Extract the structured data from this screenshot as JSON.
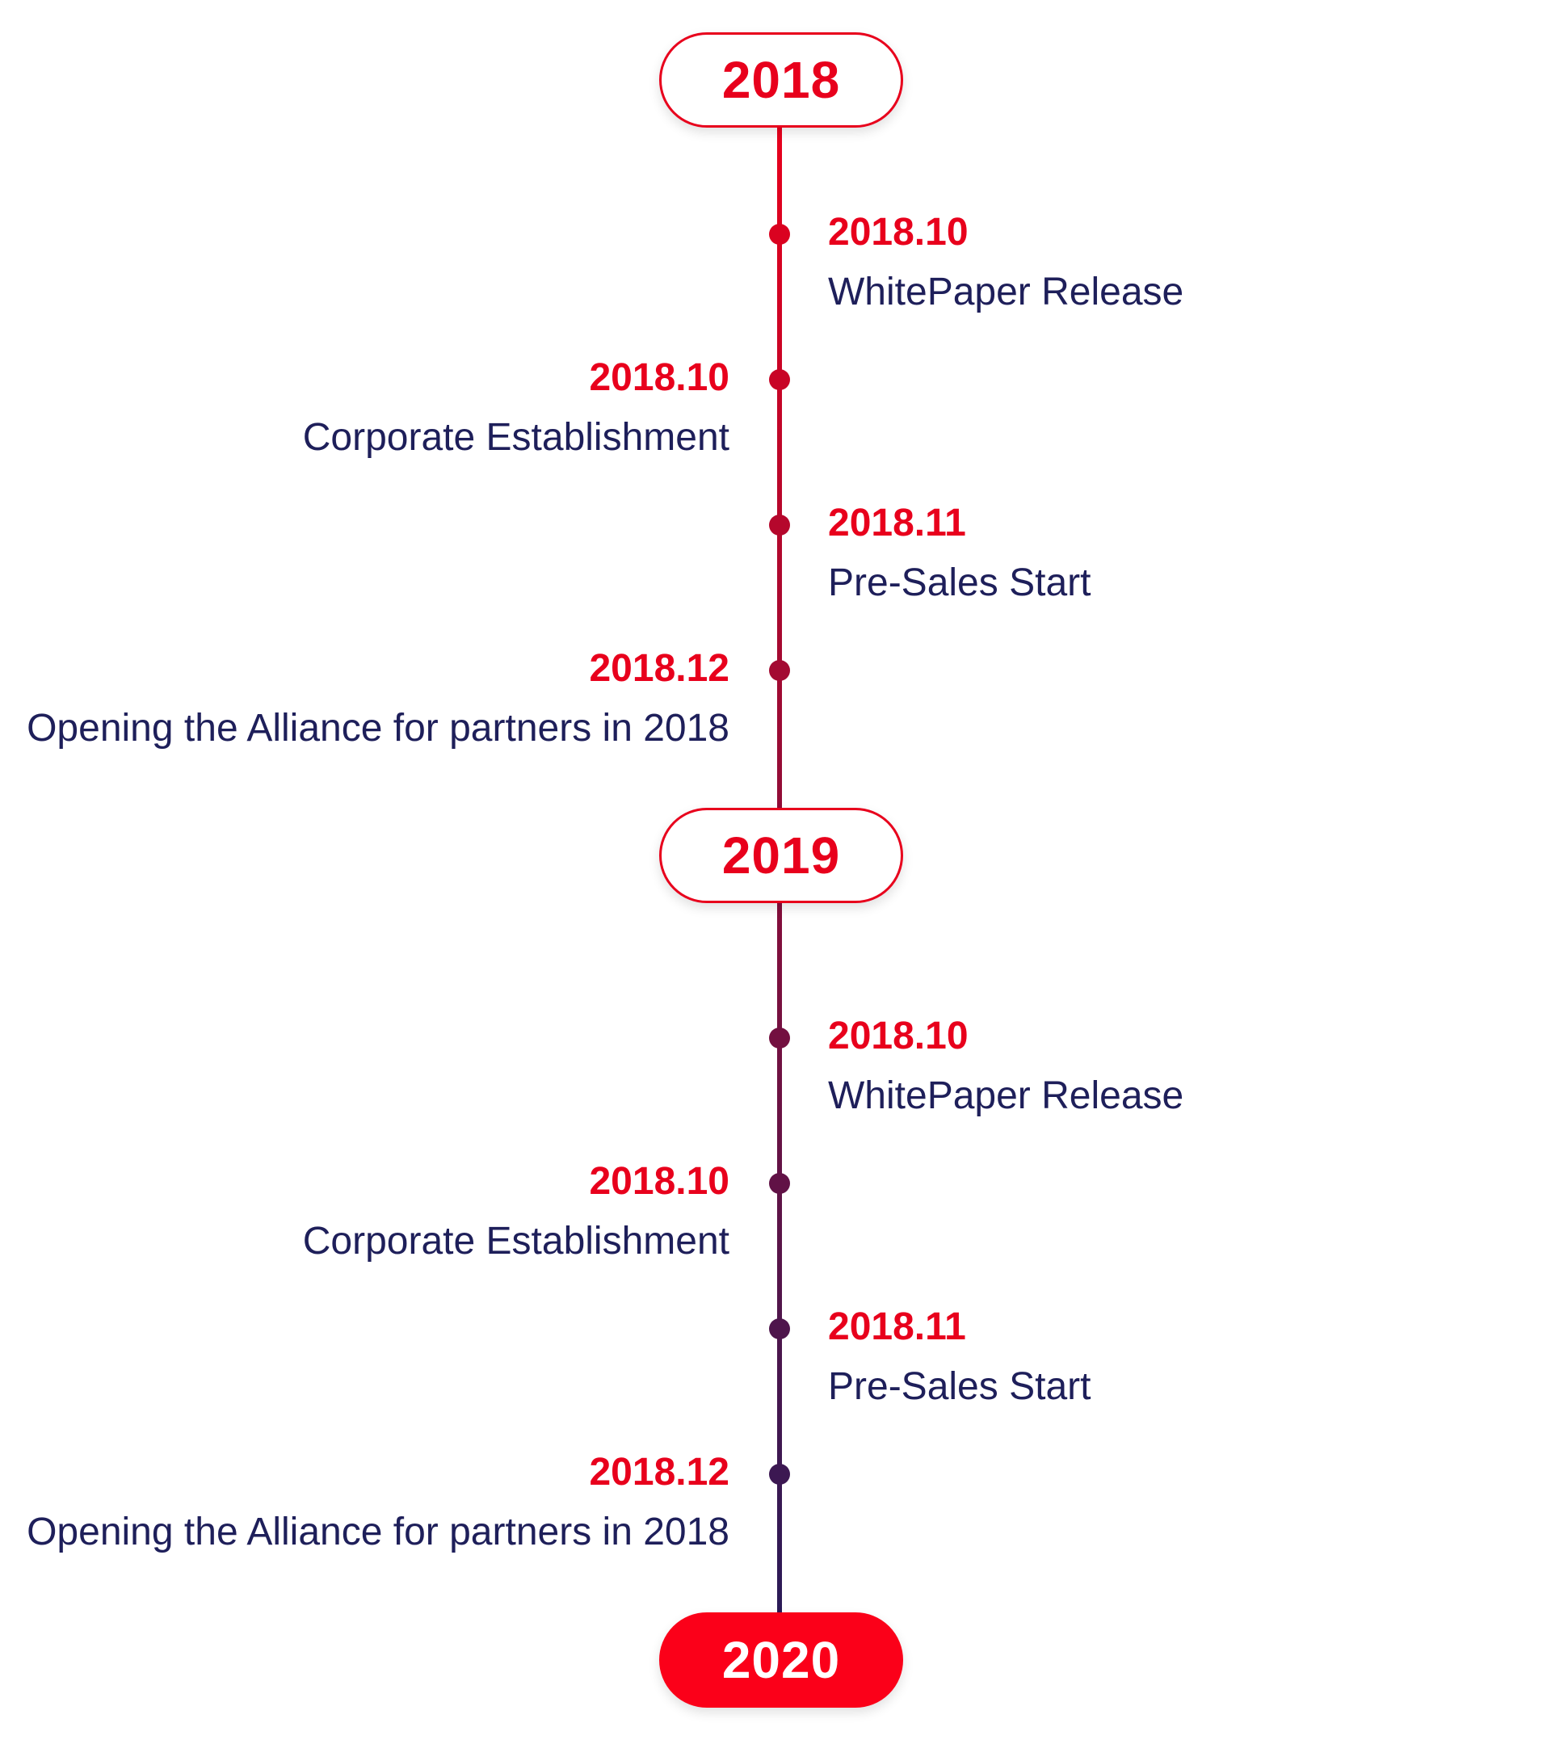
{
  "colors": {
    "accent": "#e8001c",
    "accent_fill": "#fb0019",
    "text_dark": "#1e1f5a",
    "line_end": "#2a1a57"
  },
  "timeline": {
    "years": [
      {
        "label": "2018",
        "filled": false
      },
      {
        "label": "2019",
        "filled": false
      },
      {
        "label": "2020",
        "filled": true
      }
    ],
    "groups": [
      {
        "events": [
          {
            "date": "2018.10",
            "title": "WhitePaper Release",
            "side": "right"
          },
          {
            "date": "2018.10",
            "title": "Corporate Establishment",
            "side": "left"
          },
          {
            "date": "2018.11",
            "title": "Pre-Sales Start",
            "side": "right"
          },
          {
            "date": "2018.12",
            "title": "Opening the Alliance for partners in 2018",
            "side": "left"
          }
        ]
      },
      {
        "events": [
          {
            "date": "2018.10",
            "title": "WhitePaper Release",
            "side": "right"
          },
          {
            "date": "2018.10",
            "title": "Corporate Establishment",
            "side": "left"
          },
          {
            "date": "2018.11",
            "title": "Pre-Sales Start",
            "side": "right"
          },
          {
            "date": "2018.12",
            "title": "Opening the Alliance for partners in 2018",
            "side": "left"
          }
        ]
      }
    ]
  }
}
